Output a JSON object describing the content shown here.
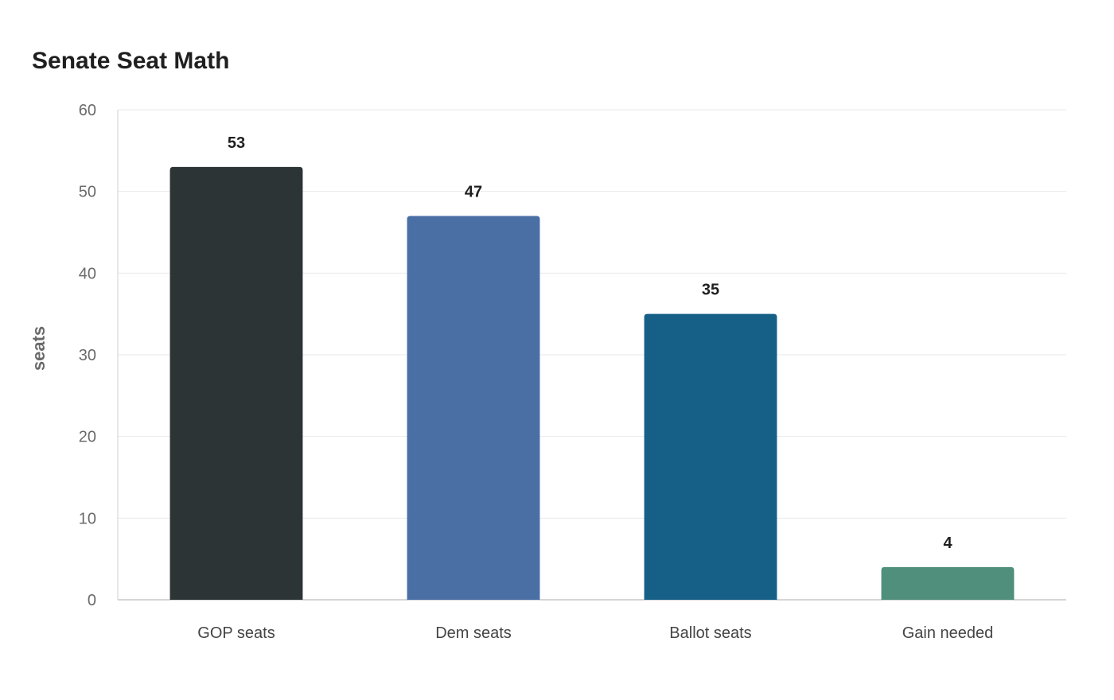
{
  "chart_data": {
    "type": "bar",
    "title": "Senate Seat Math",
    "xlabel": "",
    "ylabel": "seats",
    "ylim": [
      0,
      60
    ],
    "yticks": [
      0,
      10,
      20,
      30,
      40,
      50,
      60
    ],
    "grid": true,
    "categories": [
      "GOP seats",
      "Dem seats",
      "Ballot seats",
      "Gain needed"
    ],
    "values": [
      53,
      47,
      35,
      4
    ],
    "value_labels": [
      "53",
      "47",
      "35",
      "4"
    ],
    "colors": [
      "#2d3436",
      "#4a6fa5",
      "#166088",
      "#4f8f7b"
    ]
  }
}
